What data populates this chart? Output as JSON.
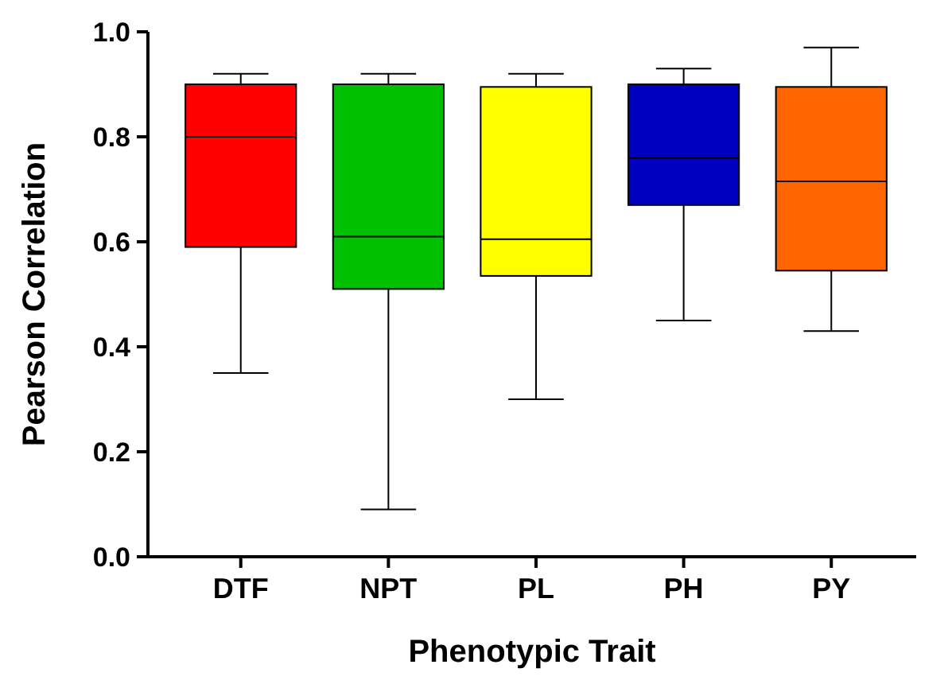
{
  "chart_data": {
    "type": "box",
    "xlabel": "Phenotypic Trait",
    "ylabel": "Pearson Correlation",
    "categories": [
      "DTF",
      "NPT",
      "PL",
      "PH",
      "PY"
    ],
    "colors": [
      "#ff0000",
      "#00c000",
      "#ffff00",
      "#0000c0",
      "#ff6600"
    ],
    "boxes": [
      {
        "low": 0.35,
        "q1": 0.59,
        "median": 0.8,
        "q3": 0.9,
        "high": 0.92
      },
      {
        "low": 0.09,
        "q1": 0.51,
        "median": 0.61,
        "q3": 0.9,
        "high": 0.92
      },
      {
        "low": 0.3,
        "q1": 0.535,
        "median": 0.605,
        "q3": 0.895,
        "high": 0.92
      },
      {
        "low": 0.45,
        "q1": 0.67,
        "median": 0.76,
        "q3": 0.9,
        "high": 0.93
      },
      {
        "low": 0.43,
        "q1": 0.545,
        "median": 0.715,
        "q3": 0.895,
        "high": 0.97
      }
    ],
    "ylim": [
      0,
      1
    ],
    "yticks": [
      {
        "value": 0,
        "label": "0.0"
      },
      0.2,
      0.4,
      0.6,
      0.8,
      {
        "value": 1,
        "label": "1.0"
      }
    ],
    "grid": false
  }
}
